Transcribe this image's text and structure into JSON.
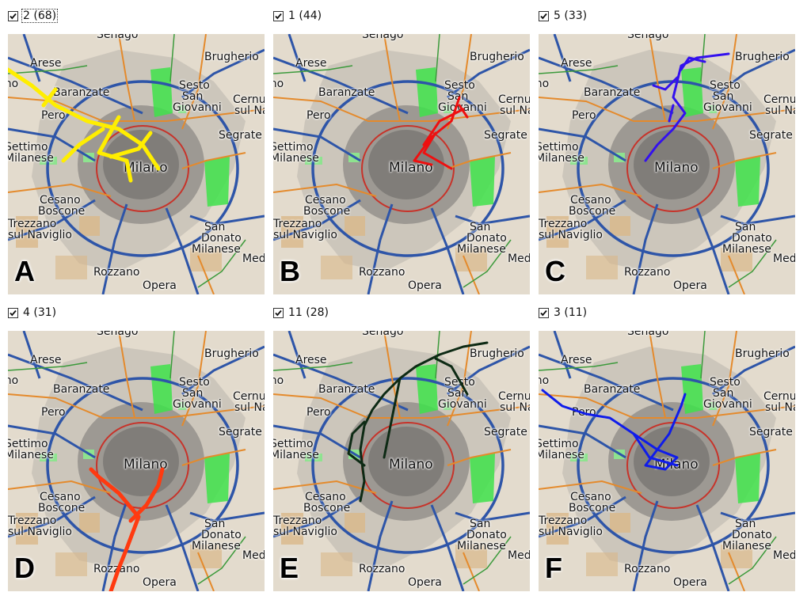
{
  "panels": [
    {
      "label": "2 (68)",
      "letter": "A",
      "color": "#ffee00",
      "focused": true
    },
    {
      "label": "1 (44)",
      "letter": "B",
      "color": "#ee1010",
      "focused": false
    },
    {
      "label": "5 (33)",
      "letter": "C",
      "color": "#3310ee",
      "focused": false
    },
    {
      "label": "4 (31)",
      "letter": "D",
      "color": "#ff3a10",
      "focused": false
    },
    {
      "label": "11 (28)",
      "letter": "E",
      "color": "#0d2a14",
      "focused": false
    },
    {
      "label": "3 (11)",
      "letter": "F",
      "color": "#0f1cea",
      "focused": false
    }
  ],
  "map_labels": {
    "senago": "Senago",
    "arese": "Arese",
    "rho": "Rho",
    "brugherio": "Brugherio",
    "baranzate": "Baranzate",
    "sesto1": "Sesto",
    "sesto2": "San",
    "sesto3": "Giovanni",
    "cernusco1": "Cernusco",
    "cernusco2": "sul Naviglio",
    "pero": "Pero",
    "segrate": "Segrate",
    "settimo1": "Settimo",
    "settimo2": "Milanese",
    "milano": "Milano",
    "cesano1": "Cesano",
    "cesano2": "Boscone",
    "trezzano1": "Trezzano",
    "trezzano2": "sul Naviglio",
    "sandonato1": "San",
    "sandonato2": "Donato",
    "sandonato3": "Milanese",
    "med": "Med",
    "rozzano": "Rozzano",
    "opera": "Opera"
  }
}
